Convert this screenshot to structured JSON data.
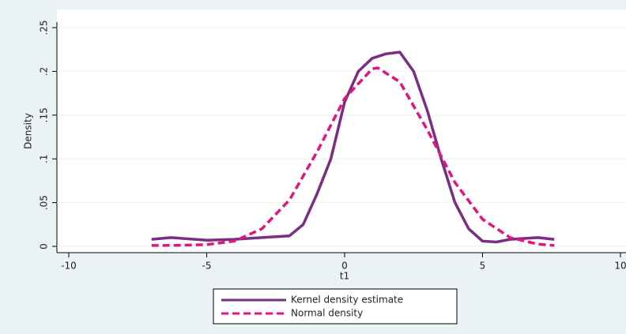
{
  "chart_data": {
    "type": "line",
    "x_label": "t1",
    "y_label": "Density",
    "xlim": [
      -10,
      10
    ],
    "ylim": [
      0,
      0.25
    ],
    "xticks": [
      -10,
      -5,
      0,
      5,
      10
    ],
    "yticks": [
      0,
      {
        "value": 0.05,
        "label": ".05"
      },
      {
        "value": 0.1,
        "label": ".1"
      },
      {
        "value": 0.15,
        "label": ".15"
      },
      {
        "value": 0.2,
        "label": ".2"
      },
      {
        "value": 0.25,
        "label": ".25"
      }
    ],
    "grid": true,
    "legend": "bottom",
    "series": [
      {
        "name": "Kernel density estimate",
        "color": "#7b2c83",
        "dash": false,
        "x": [
          -7,
          -6.3,
          -5,
          -4,
          -3,
          -2,
          -1.5,
          -1,
          -0.5,
          0,
          0.5,
          1,
          1.5,
          2,
          2.5,
          3,
          3.5,
          4,
          4.5,
          5,
          5.5,
          6,
          6.5,
          7,
          7.6
        ],
        "values": [
          0.008,
          0.01,
          0.007,
          0.008,
          0.01,
          0.012,
          0.025,
          0.06,
          0.1,
          0.165,
          0.2,
          0.215,
          0.22,
          0.222,
          0.2,
          0.155,
          0.1,
          0.05,
          0.02,
          0.006,
          0.005,
          0.008,
          0.009,
          0.01,
          0.008
        ]
      },
      {
        "name": "Normal density",
        "color": "#e0157f",
        "dash": true,
        "x": [
          -7,
          -6,
          -5,
          -4,
          -3,
          -2,
          -1,
          0,
          1,
          1.2,
          2,
          3,
          4,
          5,
          6,
          7,
          7.6
        ],
        "values": [
          0.001,
          0.0012,
          0.002,
          0.006,
          0.02,
          0.053,
          0.108,
          0.169,
          0.203,
          0.204,
          0.188,
          0.133,
          0.073,
          0.031,
          0.01,
          0.0025,
          0.001
        ]
      }
    ]
  }
}
